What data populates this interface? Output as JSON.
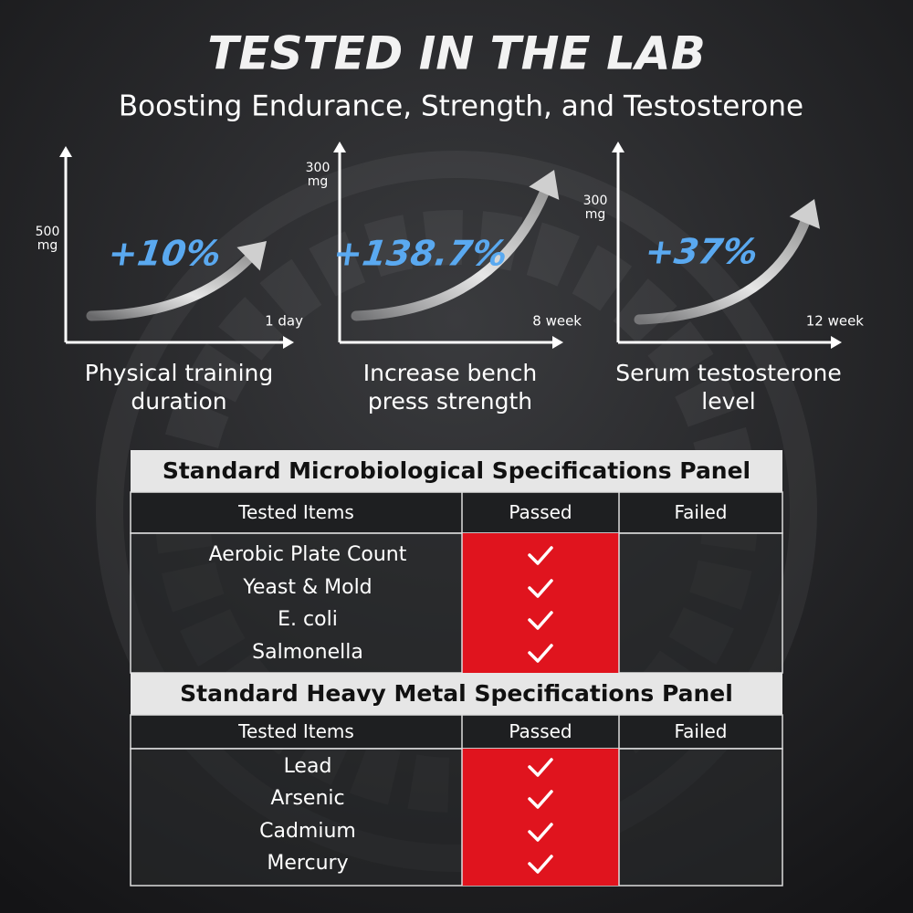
{
  "header": {
    "title": "TESTED IN THE LAB",
    "subtitle": "Boosting Endurance, Strength, and Testosterone"
  },
  "panels": [
    {
      "dose": [
        "500",
        "mg"
      ],
      "change": "+10%",
      "period": "1 day",
      "caption": [
        "Physical training",
        "duration"
      ]
    },
    {
      "dose": [
        "300",
        "mg"
      ],
      "change": "+138.7%",
      "period": "8 week",
      "caption": [
        "Increase bench",
        "press strength"
      ]
    },
    {
      "dose": [
        "300",
        "mg"
      ],
      "change": "+37%",
      "period": "12 week",
      "caption": [
        "Serum testosterone",
        "level"
      ]
    }
  ],
  "tables": [
    {
      "title": "Standard Microbiological Specifications Panel",
      "headers": [
        "Tested Items",
        "Passed",
        "Failed"
      ],
      "rows": [
        "Aerobic Plate Count",
        "Yeast & Mold",
        "E. coli",
        "Salmonella"
      ]
    },
    {
      "title": "Standard Heavy Metal Specifications Panel",
      "headers": [
        "Tested Items",
        "Passed",
        "Failed"
      ],
      "rows": [
        "Lead",
        "Arsenic",
        "Cadmium",
        "Mercury"
      ]
    }
  ]
}
